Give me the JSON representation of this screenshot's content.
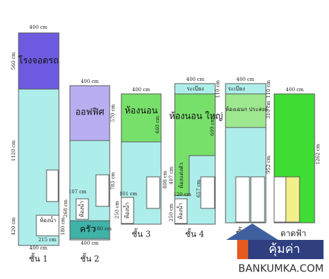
{
  "plans": [
    {
      "floor": "ชั้น 1",
      "rooms": [
        "โรงจอดรถ",
        "ห้องน้ำ"
      ],
      "dims": [
        "400 cm",
        "560 cm",
        "1120 cm",
        "420 cm",
        "180 cm",
        "215 cm",
        "400 cm"
      ]
    },
    {
      "floor": "ชั้น 2",
      "rooms": [
        "ออฟฟิศ",
        "ห้องน้ำ",
        "ครัว"
      ],
      "dims": [
        "400 cm",
        "570 cm",
        "783 cm",
        "107 cm",
        "268 cm",
        "180 cm",
        "400 cm"
      ]
    },
    {
      "floor": "ชั้น 3",
      "rooms": [
        "ห้องนอน",
        "ห้องน้ำ"
      ],
      "dims": [
        "400 cm",
        "460 cm",
        "808 cm",
        "101 cm",
        "250 cm"
      ]
    },
    {
      "floor": "ชั้น 4",
      "rooms": [
        "ระเบียง",
        "ห้องนอน ใหญ่",
        "ห้องแต่งตัว",
        "ห้องน้ำ"
      ],
      "dims": [
        "400 cm",
        "110 cm",
        "609 cm",
        "407 cm",
        "657 cm",
        "120 cm",
        "250 cm"
      ]
    },
    {
      "floor": "ชั้น 5",
      "rooms": [
        "ระเบียง",
        "ห้องเอนก ประสงค์"
      ],
      "dims": [
        "400 cm",
        "110 cm",
        "310 cm",
        "952 cm"
      ]
    },
    {
      "floor": "ดาดฟ้า",
      "rooms": [],
      "dims": [
        "400 cm",
        "1262 cm"
      ]
    }
  ],
  "logo": {
    "name": "คุ้มค่า",
    "site": "BANKUMKA.COM"
  }
}
